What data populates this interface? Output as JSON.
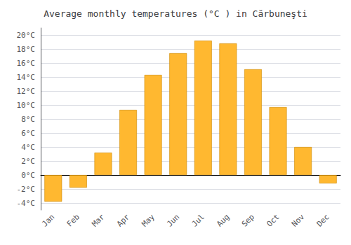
{
  "chart_data": {
    "type": "bar",
    "title": "Average monthly temperatures (°C ) in Cărbuneşti",
    "categories": [
      "Jan",
      "Feb",
      "Mar",
      "Apr",
      "May",
      "Jun",
      "Jul",
      "Aug",
      "Sep",
      "Oct",
      "Nov",
      "Dec"
    ],
    "values": [
      -3.8,
      -1.8,
      3.2,
      9.3,
      14.3,
      17.4,
      19.2,
      18.8,
      15.1,
      9.7,
      4.0,
      -1.2
    ],
    "color": "#FFB830",
    "ylim": [
      -5,
      21
    ],
    "yticks": [
      {
        "value": -4,
        "label": "-4°C"
      },
      {
        "value": -2,
        "label": "-2°C"
      },
      {
        "value": 0,
        "label": "0°C"
      },
      {
        "value": 2,
        "label": "2°C"
      },
      {
        "value": 4,
        "label": "4°C"
      },
      {
        "value": 6,
        "label": "6°C"
      },
      {
        "value": 8,
        "label": "8°C"
      },
      {
        "value": 10,
        "label": "10°C"
      },
      {
        "value": 12,
        "label": "12°C"
      },
      {
        "value": 14,
        "label": "14°C"
      },
      {
        "value": 16,
        "label": "16°C"
      },
      {
        "value": 18,
        "label": "18°C"
      },
      {
        "value": 20,
        "label": "20°C"
      }
    ],
    "grid": true
  }
}
